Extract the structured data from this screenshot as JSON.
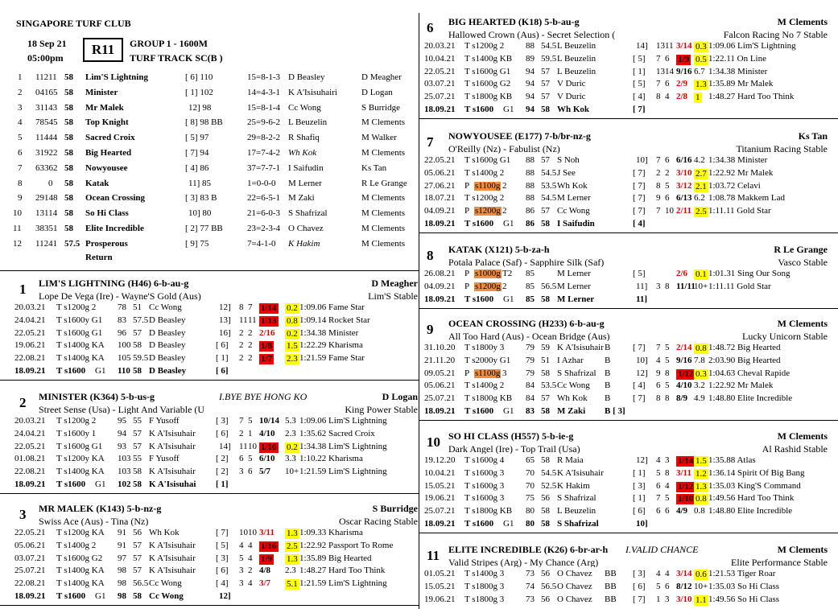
{
  "meeting": {
    "club": "SINGAPORE TURF CLUB",
    "date": "18 Sep 21",
    "time": "05:00pm",
    "race": "R11",
    "group": "GROUP 1 - 1600M",
    "track": "TURF TRACK SC(B )"
  },
  "field": [
    {
      "no": "1",
      "form": "11211",
      "wt": "58",
      "name": "Lim'S Lightning",
      "bar": "[ 6] 110",
      "rec": "15=8-1-3",
      "jky": "D Beasley",
      "trn": "D Meagher"
    },
    {
      "no": "2",
      "form": "04165",
      "wt": "58",
      "name": "Minister",
      "bar": "[ 1] 102",
      "rec": "14=4-3-1",
      "jky": "K A'Isisuhairi",
      "trn": "D Logan"
    },
    {
      "no": "3",
      "form": "31143",
      "wt": "58",
      "name": "Mr Malek",
      "bar": "12] 98",
      "rec": "15=8-1-4",
      "jky": "Cc Wong",
      "trn": "S Burridge"
    },
    {
      "no": "4",
      "form": "78545",
      "wt": "58",
      "name": "Top Knight",
      "bar": "[ 8] 98 BB",
      "rec": "25=9-6-2",
      "jky": "L Beuzelin",
      "trn": "M Clements"
    },
    {
      "no": "5",
      "form": "11444",
      "wt": "58",
      "name": "Sacred Croix",
      "bar": "[ 5] 97",
      "rec": "29=8-2-2",
      "jky": "R Shafiq",
      "trn": "M Walker"
    },
    {
      "no": "6",
      "form": "31922",
      "wt": "58",
      "name": "Big Hearted",
      "bar": "[ 7] 94",
      "rec": "17=7-4-2",
      "jky": "Wh Kok",
      "trn": "M Clements"
    },
    {
      "no": "7",
      "form": "63362",
      "wt": "58",
      "name": "Nowyousee",
      "bar": "[ 4] 86",
      "rec": "37=7-7-1",
      "jky": "I Saifudin",
      "trn": "Ks Tan"
    },
    {
      "no": "8",
      "form": "0",
      "wt": "58",
      "name": "Katak",
      "bar": "11] 85",
      "rec": "1=0-0-0",
      "jky": "M Lerner",
      "trn": "R Le Grange"
    },
    {
      "no": "9",
      "form": "29148",
      "wt": "58",
      "name": "Ocean Crossing",
      "bar": "[ 3] 83 B",
      "rec": "22=6-5-1",
      "jky": "M Zaki",
      "trn": "M Clements"
    },
    {
      "no": "10",
      "form": "13114",
      "wt": "58",
      "name": "So Hi Class",
      "bar": "10] 80",
      "rec": "21=6-0-3",
      "jky": "S Shafrizal",
      "trn": "M Clements"
    },
    {
      "no": "11",
      "form": "38351",
      "wt": "58",
      "name": "Elite Incredible",
      "bar": "[ 2] 77 BB",
      "rec": "23=2-3-4",
      "jky": "O Chavez",
      "trn": "M Clements"
    },
    {
      "no": "12",
      "form": "11241",
      "wt": "57.5",
      "name": "Prosperous",
      "name2": "Return",
      "bar": "[ 9] 75",
      "rec": "7=4-1-0",
      "jky": "K Hakim",
      "trn": "M Clements"
    }
  ],
  "horses": [
    {
      "num": "1",
      "title": "LIM'S LIGHTNING  (H46)  6-b-au-g",
      "trainer": "D Meagher",
      "pedigree": "Lope De Vega (Ire) - Wayne'S Gold (Aus)",
      "owner": "Lim'S Stable",
      "extra": "",
      "runs": [
        [
          "20.03.21",
          "T s1200g 2",
          "78",
          "51",
          "Cc Wong",
          "",
          "12]",
          "8",
          "7",
          "1/14",
          "R",
          "0.2",
          "1:09.06 Fame Star"
        ],
        [
          "24.04.21",
          "T s1600y G1",
          "83",
          "57.5",
          "D Beasley",
          "",
          "13]",
          "11",
          "11",
          "1/13",
          "R",
          "0.8",
          "1:09.14 Rocket Star"
        ],
        [
          "22.05.21",
          "T s1600g G1",
          "96",
          "57",
          "D Beasley",
          "",
          "16]",
          "2",
          "2",
          "2/16",
          "r",
          "0.2",
          "1:34.38 Minister"
        ],
        [
          "19.06.21",
          "T s1400g KA",
          "100",
          "58",
          "D Beasley",
          "",
          "[ 6]",
          "2",
          "2",
          "1/8",
          "R",
          "1.5",
          "1:22.29 Kharisma"
        ],
        [
          "22.08.21",
          "T s1400g KA",
          "105",
          "59.5",
          "D Beasley",
          "",
          "[ 1]",
          "2",
          "2",
          "1/7",
          "R",
          "2.3",
          "1:21.59 Fame Star"
        ]
      ],
      "today": [
        "18.09.21",
        "T s1600",
        "G1",
        "110",
        "58",
        "D Beasley",
        "[ 6]"
      ]
    },
    {
      "num": "2",
      "title": "MINISTER  (K364)  5-b-us-g",
      "trainer": "D Logan",
      "pedigree": "Street Sense (Usa) - Light And Variable (U",
      "owner": "King Power Stable",
      "extra": "I.BYE BYE HONG KO",
      "runs": [
        [
          "20.03.21",
          "T s1200g 2",
          "95",
          "55",
          "F Yusoff",
          "",
          "[ 3]",
          "7",
          "5",
          "10/14",
          "",
          "5.3",
          "1:09.06 Lim'S Lightning"
        ],
        [
          "24.04.21",
          "T s1600y 1",
          "94",
          "57",
          "K A'Isisuhair",
          "",
          "[ 6]",
          "2",
          "1",
          "4/10",
          "",
          "2.3",
          "1:35.62 Sacred Croix"
        ],
        [
          "22.05.21",
          "T s1600g G1",
          "93",
          "57",
          "K A'Isisuhair",
          "",
          "14]",
          "11",
          "10",
          "1/16",
          "R",
          "0.2",
          "1:34.38 Lim'S Lightning"
        ],
        [
          "01.08.21",
          "T s1200y KA",
          "103",
          "55",
          "F Yusoff",
          "",
          "[ 2]",
          "6",
          "5",
          "6/10",
          "",
          "3.3",
          "1:10.22 Kharisma"
        ],
        [
          "22.08.21",
          "T s1400g KA",
          "103",
          "58",
          "K A'Isisuhair",
          "",
          "[ 2]",
          "3",
          "6",
          "5/7",
          "",
          "10+",
          "1:21.59 Lim'S Lightning"
        ]
      ],
      "today": [
        "18.09.21",
        "T s1600",
        "G1",
        "102",
        "58",
        "K A'Isisuhai",
        "[ 1]"
      ]
    },
    {
      "num": "3",
      "title": "MR MALEK  (K143)  5-b-nz-g",
      "trainer": "S Burridge",
      "pedigree": "Swiss Ace (Aus) - Tina (Nz)",
      "owner": "Oscar Racing Stable",
      "extra": "",
      "runs": [
        [
          "22.05.21",
          "T s1200g KA",
          "91",
          "56",
          "Wh Kok",
          "",
          "[ 7]",
          "10",
          "10",
          "3/11",
          "r",
          "1.3",
          "1:09.33 Kharisma"
        ],
        [
          "05.06.21",
          "T s1400g 2",
          "91",
          "57",
          "K A'Isisuhair",
          "",
          "[ 5]",
          "4",
          "4",
          "1/16",
          "R",
          "2.5",
          "1:22.92 Passport To Rome"
        ],
        [
          "03.07.21",
          "T s1600g G2",
          "97",
          "57",
          "K A'Isisuhair",
          "",
          "[ 3]",
          "5",
          "4",
          "1/9",
          "R",
          "1.3",
          "1:35.89 Big Hearted"
        ],
        [
          "25.07.21",
          "T s1400g KA",
          "98",
          "57",
          "K A'Isisuhair",
          "",
          "[ 6]",
          "3",
          "2",
          "4/8",
          "",
          "2.3",
          "1:48.27 Hard Too Think"
        ],
        [
          "22.08.21",
          "T s1400g KA",
          "98",
          "56.5",
          "Cc Wong",
          "",
          "[ 4]",
          "3",
          "4",
          "3/7",
          "r",
          "5.1",
          "1:21.59 Lim'S Lightning"
        ]
      ],
      "today": [
        "18.09.21",
        "T s1600",
        "G1",
        "98",
        "58",
        "Cc Wong",
        "12]"
      ]
    },
    {
      "num": "6",
      "title": "BIG HEARTED  (K18)  5-b-au-g",
      "trainer": "M Clements",
      "pedigree": "Hallowed Crown (Aus) - Secret Selection (",
      "owner": "Falcon Racing No 7 Stable",
      "extra": "",
      "runs": [
        [
          "20.03.21",
          "T s1200g 2",
          "88",
          "54.5",
          "L Beuzelin",
          "",
          "14]",
          "13",
          "11",
          "3/14",
          "r",
          "0.3",
          "1:09.06 Lim'S Lightning"
        ],
        [
          "10.04.21",
          "T s1400g KB",
          "89",
          "59.5",
          "L Beuzelin",
          "",
          "[ 5]",
          "7",
          "6",
          "1/9",
          "R",
          "0.5",
          "1:22.11 On Line"
        ],
        [
          "22.05.21",
          "T s1600g G1",
          "94",
          "57",
          "L Beuzelin",
          "",
          "[ 1]",
          "13",
          "14",
          "9/16",
          "",
          "6.7",
          "1:34.38 Minister"
        ],
        [
          "03.07.21",
          "T s1600g G2",
          "94",
          "57",
          "V Duric",
          "",
          "[ 5]",
          "7",
          "6",
          "2/9",
          "r",
          "1.3",
          "1:35.89 Mr Malek"
        ],
        [
          "25.07.21",
          "T s1800g KB",
          "94",
          "57",
          "V Duric",
          "",
          "[ 4]",
          "8",
          "4",
          "2/8",
          "r",
          "1",
          "1:48.27 Hard Too Think"
        ]
      ],
      "today": [
        "18.09.21",
        "T s1600",
        "G1",
        "94",
        "58",
        "Wh Kok",
        "[ 7]"
      ]
    },
    {
      "num": "7",
      "title": "NOWYOUSEE  (E177)  7-b/br-nz-g",
      "trainer": "Ks Tan",
      "pedigree": "O'Reilly (Nz) - Fabulist (Nz)",
      "owner": "Titanium Racing Stable",
      "extra": "",
      "runs": [
        [
          "22.05.21",
          "T s1600g G1",
          "88",
          "57",
          "S Noh",
          "",
          "10]",
          "7",
          "6",
          "6/16",
          "",
          "4.2",
          "1:34.38 Minister"
        ],
        [
          "05.06.21",
          "T s1400g 2",
          "88",
          "54.5",
          "J See",
          "",
          "[ 7]",
          "2",
          "2",
          "3/10",
          "r",
          "2.7",
          "1:22.92 Mr Malek"
        ],
        [
          "27.06.21",
          "P s1100g 2",
          "88",
          "53.5",
          "Wh Kok",
          "",
          "[ 7]",
          "8",
          "5",
          "3/12",
          "r",
          "2.1",
          "1:03.72 Celavi"
        ],
        [
          "18.07.21",
          "T s1200g 2",
          "88",
          "54.5",
          "M Lerner",
          "",
          "[ 7]",
          "9",
          "6",
          "6/13",
          "",
          "6.2",
          "1:08.78 Makkem Lad"
        ],
        [
          "04.09.21",
          "P s1200g 2",
          "86",
          "57",
          "Cc Wong",
          "",
          "[ 7]",
          "7",
          "10",
          "2/11",
          "r",
          "2.5",
          "1:11.11 Gold Star"
        ]
      ],
      "today": [
        "18.09.21",
        "T s1600",
        "G1",
        "86",
        "58",
        "I Saifudin",
        "[ 4]"
      ]
    },
    {
      "num": "8",
      "title": "KATAK  (X121)  5-b-za-h",
      "trainer": "R Le Grange",
      "pedigree": "Potala Palace (Saf) - Sapphire Silk (Saf)",
      "owner": "Vasco Stable",
      "extra": "",
      "runs": [
        [
          "26.08.21",
          "P s1000g T2",
          "85",
          "",
          "M Lerner",
          "",
          "[ 5]",
          "",
          "",
          "2/6",
          "r",
          "0.1",
          "1:01.31 Sing Our Song"
        ],
        [
          "04.09.21",
          "P s1200g 2",
          "85",
          "56.5",
          "M Lerner",
          "",
          "11]",
          "3",
          "8",
          "11/11",
          "",
          "10+",
          "1:11.11 Gold Star"
        ]
      ],
      "today": [
        "18.09.21",
        "T s1600",
        "G1",
        "85",
        "58",
        "M Lerner",
        "11]"
      ]
    },
    {
      "num": "9",
      "title": "OCEAN CROSSING  (H233)  6-b-au-g",
      "trainer": "M Clements",
      "pedigree": "All Too Hard (Aus) - Ocean Bridge (Aus)",
      "owner": "Lucky Unicorn Stable",
      "extra": "",
      "runs": [
        [
          "31.10.20",
          "T s1800y 3",
          "79",
          "59",
          "K A'Isisuhair",
          "B",
          "[ 7]",
          "7",
          "5",
          "2/14",
          "r",
          "0.8",
          "1:48.72 Big Hearted"
        ],
        [
          "21.11.20",
          "T s2000y G1",
          "79",
          "51",
          "I Azhar",
          "B",
          "10]",
          "4",
          "5",
          "9/16",
          "",
          "7.8",
          "2:03.90 Big Hearted"
        ],
        [
          "09.05.21",
          "P s1100g 3",
          "79",
          "58",
          "S Shafrizal",
          "B",
          "12]",
          "9",
          "8",
          "1/12",
          "R",
          "0.3",
          "1:04.63 Cheval Rapide"
        ],
        [
          "05.06.21",
          "T s1400g 2",
          "84",
          "53.5",
          "Cc Wong",
          "B",
          "[ 4]",
          "6",
          "5",
          "4/10",
          "",
          "3.2",
          "1:22.92 Mr Malek"
        ],
        [
          "25.07.21",
          "T s1800g KB",
          "84",
          "57",
          "Wh Kok",
          "B",
          "[ 7]",
          "8",
          "8",
          "8/9",
          "",
          "4.9",
          "1:48.80 Elite Incredible"
        ]
      ],
      "today": [
        "18.09.21",
        "T s1600",
        "G1",
        "83",
        "58",
        "M Zaki",
        "B [ 3]"
      ]
    },
    {
      "num": "10",
      "title": "SO HI CLASS  (H557)  5-b-ie-g",
      "trainer": "M Clements",
      "pedigree": "Dark Angel (Ire) - Top Trail (Usa)",
      "owner": "Al Rashid Stable",
      "extra": "",
      "runs": [
        [
          "19.12.20",
          "T s1600g 4",
          "65",
          "58",
          "R Maia",
          "",
          "12]",
          "4",
          "3",
          "1/14",
          "R",
          "1.5",
          "1:35.88 Atlas"
        ],
        [
          "10.04.21",
          "T s1600g 3",
          "70",
          "54.5",
          "K A'Isisuhair",
          "",
          "[ 1]",
          "5",
          "8",
          "3/11",
          "r",
          "1.2",
          "1:36.14 Spirit Of Big Bang"
        ],
        [
          "15.05.21",
          "T s1600g 3",
          "70",
          "52.5",
          "K Hakim",
          "",
          "[ 3]",
          "6",
          "4",
          "1/12",
          "R",
          "1.3",
          "1:35.03 King'S Command"
        ],
        [
          "19.06.21",
          "T s1600g 3",
          "75",
          "56",
          "S Shafrizal",
          "",
          "[ 1]",
          "7",
          "5",
          "1/10",
          "R",
          "0.8",
          "1:49.56 Hard Too Think"
        ],
        [
          "25.07.21",
          "T s1800g KB",
          "80",
          "58",
          "L Beuzelin",
          "",
          "[ 6]",
          "6",
          "6",
          "4/9",
          "",
          "0.8",
          "1:48.80 Elite Incredible"
        ]
      ],
      "today": [
        "18.09.21",
        "T s1600",
        "G1",
        "80",
        "58",
        "S Shafrizal",
        "10]"
      ]
    },
    {
      "num": "11",
      "title": "ELITE INCREDIBLE  (K26)  6-br-ar-h",
      "trainer": "M Clements",
      "pedigree": "Valid Stripes (Arg) - My Chance (Arg)",
      "owner": "Elite Performance Stable",
      "extra": "I.VALID CHANCE",
      "runs": [
        [
          "01.05.21",
          "T s1400g 3",
          "73",
          "56",
          "O Chavez",
          "BB",
          "[ 3]",
          "4",
          "4",
          "3/14",
          "r",
          "0.6",
          "1:21.53 Tiger Roar"
        ],
        [
          "15.05.21",
          "T s1800g 3",
          "74",
          "56.5",
          "O Chavez",
          "BB",
          "[ 6]",
          "5",
          "6",
          "8/12",
          "",
          "10+",
          "1:35.03 So Hi Class"
        ],
        [
          "19.06.21",
          "T s1800g 3",
          "73",
          "56",
          "O Chavez",
          "BB",
          "[ 7]",
          "1",
          "3",
          "3/10",
          "r",
          "1.1",
          "1:49.56 So Hi Class"
        ]
      ],
      "today": null
    }
  ]
}
